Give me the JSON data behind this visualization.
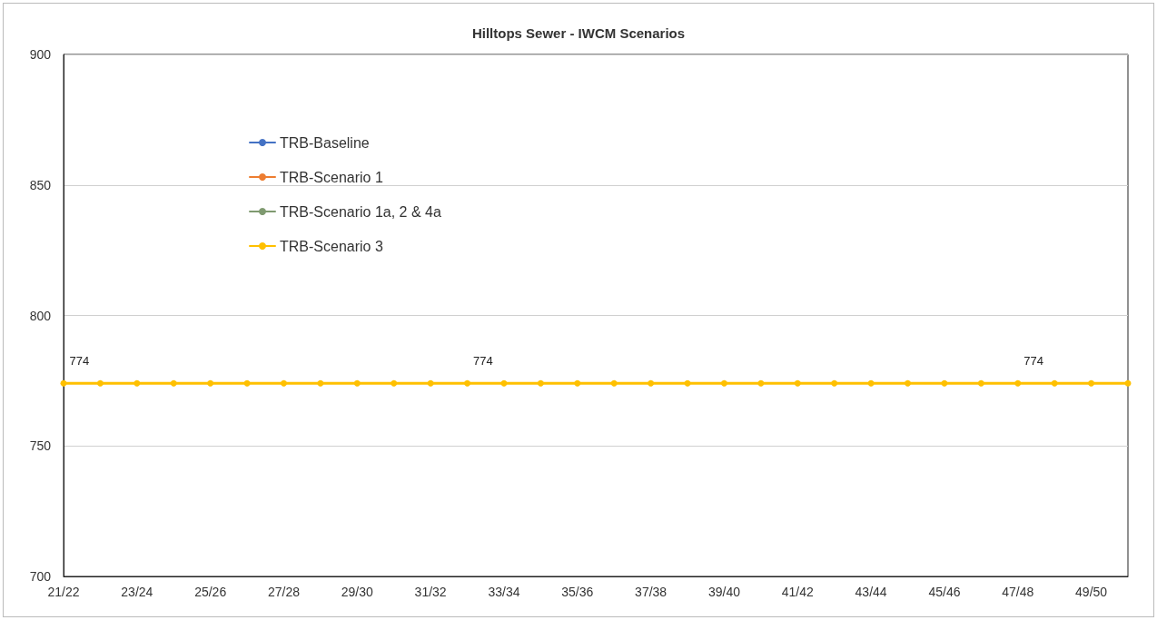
{
  "chart_data": {
    "type": "line",
    "title": "Hilltops Sewer - IWCM Scenarios",
    "categories": [
      "21/22",
      null,
      "23/24",
      null,
      "25/26",
      null,
      "27/28",
      null,
      "29/30",
      null,
      "31/32",
      null,
      "33/34",
      null,
      "35/36",
      null,
      "37/38",
      null,
      "39/40",
      null,
      "41/42",
      null,
      "43/44",
      null,
      "45/46",
      null,
      "47/48",
      null,
      "49/50",
      null
    ],
    "series": [
      {
        "name": "TRB-Baseline",
        "color": "#4472c4",
        "values": [
          null,
          null,
          null,
          null,
          null,
          null,
          null,
          null,
          null,
          null,
          null,
          null,
          null,
          null,
          null,
          null,
          null,
          null,
          null,
          null,
          null,
          null,
          null,
          null,
          null,
          null,
          null,
          null,
          null,
          null
        ]
      },
      {
        "name": "TRB-Scenario 1",
        "color": "#ed7d31",
        "values": [
          null,
          null,
          null,
          null,
          null,
          null,
          null,
          null,
          null,
          null,
          null,
          null,
          null,
          null,
          null,
          null,
          null,
          null,
          null,
          null,
          null,
          null,
          null,
          null,
          null,
          null,
          null,
          null,
          null,
          null
        ]
      },
      {
        "name": "TRB-Scenario 1a, 2 & 4a",
        "color": "#7f9a70",
        "values": [
          null,
          null,
          null,
          null,
          null,
          null,
          null,
          null,
          null,
          null,
          null,
          null,
          null,
          null,
          null,
          null,
          null,
          null,
          null,
          null,
          null,
          null,
          null,
          null,
          null,
          null,
          null,
          null,
          null,
          null
        ]
      },
      {
        "name": "TRB-Scenario 3",
        "color": "#ffc000",
        "values": [
          774,
          774,
          774,
          774,
          774,
          774,
          774,
          774,
          774,
          774,
          774,
          774,
          774,
          774,
          774,
          774,
          774,
          774,
          774,
          774,
          774,
          774,
          774,
          774,
          774,
          774,
          774,
          774,
          774,
          774
        ],
        "value_labels": [
          "774",
          null,
          null,
          null,
          null,
          null,
          null,
          null,
          null,
          null,
          null,
          "774",
          null,
          null,
          null,
          null,
          null,
          null,
          null,
          null,
          null,
          null,
          null,
          null,
          null,
          null,
          "774",
          null,
          null,
          null
        ]
      }
    ],
    "ylim": [
      700,
      900
    ],
    "yticks": [
      700,
      750,
      800,
      850,
      900
    ],
    "grid": "y",
    "legend": "top left",
    "marker": "circle",
    "line_style": "solid"
  }
}
